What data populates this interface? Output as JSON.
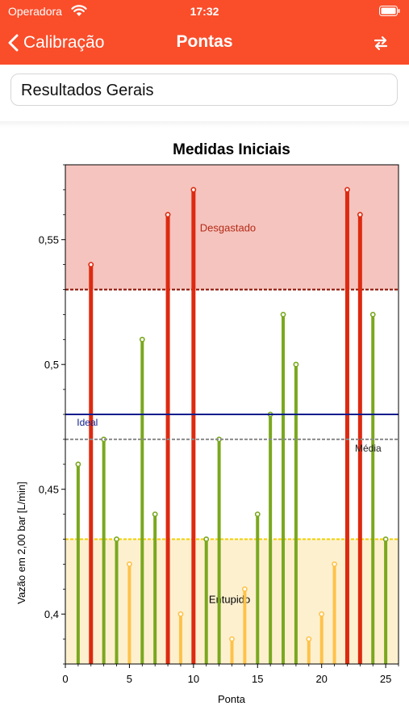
{
  "status_bar": {
    "carrier": "Operadora",
    "time": "17:32"
  },
  "nav": {
    "back_label": "Calibração",
    "title": "Pontas",
    "swap_icon": "swap-arrows-icon"
  },
  "selector": {
    "value": "Resultados Gerais"
  },
  "colors": {
    "brand": "#fa4d2a",
    "worn": "#dd2a10",
    "ok": "#7aa81f",
    "clogged": "#fec24a",
    "ideal": "#0c1d8c"
  },
  "chart_data": {
    "type": "bar",
    "title": "Medidas Iniciais",
    "xlabel": "Ponta",
    "ylabel": "Vazão em 2,00 bar [L/min]",
    "xlim": [
      0,
      26
    ],
    "ylim": [
      0.38,
      0.58
    ],
    "xticks": [
      0,
      5,
      10,
      15,
      20,
      25
    ],
    "yticks": [
      0.4,
      0.45,
      0.5,
      0.55
    ],
    "ytick_labels": [
      "0,4",
      "0,45",
      "0,5",
      "0,55"
    ],
    "x": [
      1,
      2,
      3,
      4,
      5,
      6,
      7,
      8,
      9,
      10,
      11,
      12,
      13,
      14,
      15,
      16,
      17,
      18,
      19,
      20,
      21,
      22,
      23,
      24,
      25
    ],
    "values": [
      0.46,
      0.54,
      0.47,
      0.43,
      0.42,
      0.51,
      0.44,
      0.56,
      0.4,
      0.57,
      0.43,
      0.47,
      0.39,
      0.41,
      0.44,
      0.48,
      0.52,
      0.5,
      0.39,
      0.4,
      0.42,
      0.57,
      0.56,
      0.52,
      0.43
    ],
    "zones": [
      {
        "name": "Desgastado",
        "from": 0.53,
        "to": 0.58
      },
      {
        "name": "Entupido",
        "from": 0.38,
        "to": 0.43
      }
    ],
    "reference_lines": [
      {
        "name": "Ideal",
        "value": 0.48
      },
      {
        "name": "Média",
        "value": 0.47
      }
    ]
  }
}
